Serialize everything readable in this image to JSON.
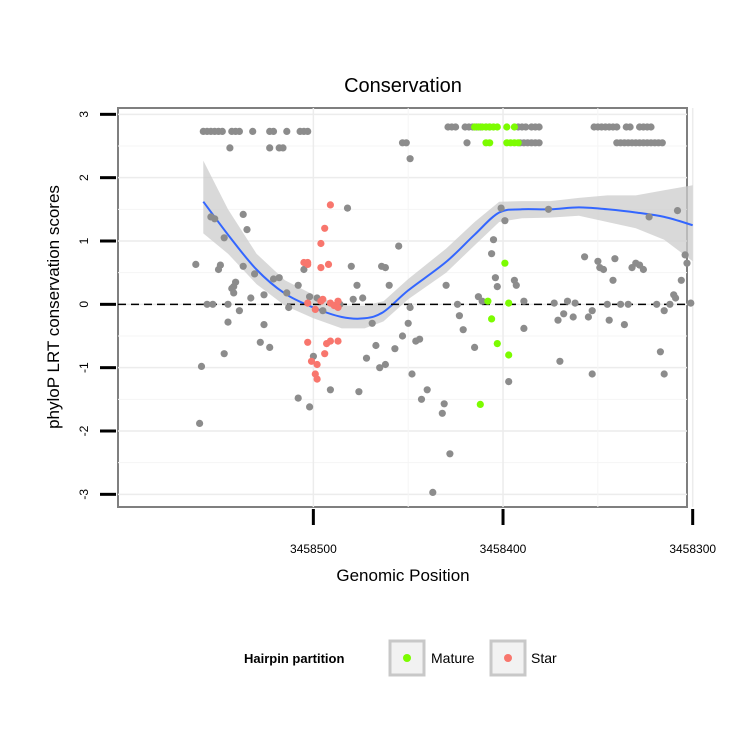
{
  "chart_data": {
    "type": "scatter",
    "title": "Conservation",
    "xlabel": "Genomic Position",
    "ylabel": "phyloP LRT conservation scores",
    "x_reversed": true,
    "xlim": [
      3458303,
      3458603
    ],
    "ylim": [
      -3.2,
      3.1
    ],
    "x_ticks": [
      3458500,
      3458400,
      3458300
    ],
    "y_ticks": [
      -3,
      -2,
      -1,
      0,
      1,
      2,
      3
    ],
    "reference_line": {
      "y": 0,
      "style": "dashed",
      "color": "#000000"
    },
    "grid": true,
    "legend": {
      "title": "Hairpin partition",
      "position": "bottom",
      "entries": [
        {
          "label": "Mature",
          "color": "#7CFC00"
        },
        {
          "label": "Star",
          "color": "#F8766D"
        }
      ]
    },
    "colors": {
      "other": "#8C8C8C",
      "Mature": "#7CFC00",
      "Star": "#F8766D",
      "smooth_line": "#3366FF",
      "smooth_band": "#CCCCCC"
    },
    "series": [
      {
        "group": "other",
        "points": [
          [
            3458558,
            2.73
          ],
          [
            3458556,
            2.73
          ],
          [
            3458554,
            2.73
          ],
          [
            3458552,
            2.73
          ],
          [
            3458550,
            2.73
          ],
          [
            3458548,
            2.73
          ],
          [
            3458543,
            2.73
          ],
          [
            3458541,
            2.73
          ],
          [
            3458539,
            2.73
          ],
          [
            3458532,
            2.73
          ],
          [
            3458523,
            2.73
          ],
          [
            3458521,
            2.73
          ],
          [
            3458514,
            2.73
          ],
          [
            3458507,
            2.73
          ],
          [
            3458505,
            2.73
          ],
          [
            3458503,
            2.73
          ],
          [
            3458544,
            2.47
          ],
          [
            3458523,
            2.47
          ],
          [
            3458518,
            2.47
          ],
          [
            3458516,
            2.47
          ],
          [
            3458453,
            2.55
          ],
          [
            3458451,
            2.55
          ],
          [
            3458419,
            2.55
          ],
          [
            3458391,
            2.55
          ],
          [
            3458389,
            2.55
          ],
          [
            3458387,
            2.55
          ],
          [
            3458385,
            2.55
          ],
          [
            3458383,
            2.55
          ],
          [
            3458381,
            2.55
          ],
          [
            3458449,
            2.3
          ],
          [
            3458429,
            2.8
          ],
          [
            3458427,
            2.8
          ],
          [
            3458425,
            2.8
          ],
          [
            3458420,
            2.8
          ],
          [
            3458418,
            2.8
          ],
          [
            3458416,
            2.8
          ],
          [
            3458414,
            2.8
          ],
          [
            3458412,
            2.8
          ],
          [
            3458409,
            2.8
          ],
          [
            3458407,
            2.8
          ],
          [
            3458392,
            2.8
          ],
          [
            3458390,
            2.8
          ],
          [
            3458388,
            2.8
          ],
          [
            3458385,
            2.8
          ],
          [
            3458383,
            2.8
          ],
          [
            3458381,
            2.8
          ],
          [
            3458352,
            2.8
          ],
          [
            3458350,
            2.8
          ],
          [
            3458348,
            2.8
          ],
          [
            3458346,
            2.8
          ],
          [
            3458344,
            2.8
          ],
          [
            3458342,
            2.8
          ],
          [
            3458340,
            2.8
          ],
          [
            3458335,
            2.8
          ],
          [
            3458333,
            2.8
          ],
          [
            3458328,
            2.8
          ],
          [
            3458326,
            2.8
          ],
          [
            3458324,
            2.8
          ],
          [
            3458322,
            2.8
          ],
          [
            3458340,
            2.55
          ],
          [
            3458338,
            2.55
          ],
          [
            3458336,
            2.55
          ],
          [
            3458334,
            2.55
          ],
          [
            3458332,
            2.55
          ],
          [
            3458330,
            2.55
          ],
          [
            3458328,
            2.55
          ],
          [
            3458326,
            2.55
          ],
          [
            3458324,
            2.55
          ],
          [
            3458322,
            2.55
          ],
          [
            3458320,
            2.55
          ],
          [
            3458318,
            2.55
          ],
          [
            3458316,
            2.55
          ],
          [
            3458562,
            0.63
          ],
          [
            3458559,
            -0.98
          ],
          [
            3458560,
            -1.88
          ],
          [
            3458556,
            0.0
          ],
          [
            3458553,
            0.0
          ],
          [
            3458554,
            1.38
          ],
          [
            3458552,
            1.35
          ],
          [
            3458550,
            0.55
          ],
          [
            3458549,
            0.62
          ],
          [
            3458547,
            -0.78
          ],
          [
            3458547,
            1.05
          ],
          [
            3458545,
            0.0
          ],
          [
            3458545,
            -0.28
          ],
          [
            3458543,
            0.25
          ],
          [
            3458542,
            0.28
          ],
          [
            3458542,
            0.18
          ],
          [
            3458541,
            0.35
          ],
          [
            3458539,
            -0.1
          ],
          [
            3458537,
            0.6
          ],
          [
            3458537,
            1.42
          ],
          [
            3458535,
            1.18
          ],
          [
            3458533,
            0.1
          ],
          [
            3458531,
            0.48
          ],
          [
            3458528,
            -0.6
          ],
          [
            3458526,
            0.15
          ],
          [
            3458526,
            -0.32
          ],
          [
            3458523,
            -0.68
          ],
          [
            3458521,
            0.4
          ],
          [
            3458518,
            0.42
          ],
          [
            3458514,
            0.18
          ],
          [
            3458513,
            -0.05
          ],
          [
            3458508,
            0.3
          ],
          [
            3458508,
            -1.48
          ],
          [
            3458505,
            0.55
          ],
          [
            3458502,
            -1.62
          ],
          [
            3458502,
            0.12
          ],
          [
            3458500,
            -0.82
          ],
          [
            3458498,
            0.1
          ],
          [
            3458495,
            -0.1
          ],
          [
            3458491,
            -1.35
          ],
          [
            3458479,
            0.08
          ],
          [
            3458477,
            0.3
          ],
          [
            3458476,
            -1.38
          ],
          [
            3458474,
            0.1
          ],
          [
            3458472,
            -0.85
          ],
          [
            3458469,
            -0.3
          ],
          [
            3458467,
            -0.65
          ],
          [
            3458465,
            -1.0
          ],
          [
            3458464,
            0.6
          ],
          [
            3458462,
            0.58
          ],
          [
            3458462,
            -0.95
          ],
          [
            3458457,
            -0.7
          ],
          [
            3458455,
            0.92
          ],
          [
            3458453,
            -0.5
          ],
          [
            3458450,
            -0.3
          ],
          [
            3458449,
            -0.05
          ],
          [
            3458448,
            -1.1
          ],
          [
            3458446,
            -0.58
          ],
          [
            3458444,
            -0.55
          ],
          [
            3458443,
            -1.5
          ],
          [
            3458440,
            -1.35
          ],
          [
            3458437,
            -2.97
          ],
          [
            3458432,
            -1.72
          ],
          [
            3458431,
            -1.57
          ],
          [
            3458428,
            -2.36
          ],
          [
            3458424,
            0.0
          ],
          [
            3458423,
            -0.18
          ],
          [
            3458421,
            -0.4
          ],
          [
            3458415,
            -0.68
          ],
          [
            3458413,
            0.12
          ],
          [
            3458411,
            0.05
          ],
          [
            3458406,
            0.8
          ],
          [
            3458405,
            1.02
          ],
          [
            3458404,
            0.42
          ],
          [
            3458403,
            0.28
          ],
          [
            3458401,
            1.52
          ],
          [
            3458399,
            1.32
          ],
          [
            3458397,
            -1.22
          ],
          [
            3458394,
            0.38
          ],
          [
            3458393,
            0.3
          ],
          [
            3458389,
            0.05
          ],
          [
            3458389,
            -0.38
          ],
          [
            3458376,
            1.5
          ],
          [
            3458373,
            0.02
          ],
          [
            3458371,
            -0.25
          ],
          [
            3458370,
            -0.9
          ],
          [
            3458368,
            -0.15
          ],
          [
            3458366,
            0.05
          ],
          [
            3458363,
            -0.2
          ],
          [
            3458362,
            0.02
          ],
          [
            3458357,
            0.75
          ],
          [
            3458355,
            -0.2
          ],
          [
            3458353,
            -1.1
          ],
          [
            3458353,
            -0.1
          ],
          [
            3458350,
            0.68
          ],
          [
            3458349,
            0.58
          ],
          [
            3458347,
            0.55
          ],
          [
            3458345,
            0.0
          ],
          [
            3458344,
            -0.25
          ],
          [
            3458342,
            0.38
          ],
          [
            3458341,
            0.72
          ],
          [
            3458338,
            0.0
          ],
          [
            3458336,
            -0.32
          ],
          [
            3458334,
            0.0
          ],
          [
            3458332,
            0.58
          ],
          [
            3458330,
            0.65
          ],
          [
            3458328,
            0.62
          ],
          [
            3458326,
            0.55
          ],
          [
            3458323,
            1.38
          ],
          [
            3458319,
            0.0
          ],
          [
            3458317,
            -0.75
          ],
          [
            3458315,
            -1.1
          ],
          [
            3458315,
            -0.1
          ],
          [
            3458312,
            0.0
          ],
          [
            3458310,
            0.15
          ],
          [
            3458309,
            0.1
          ],
          [
            3458308,
            1.48
          ],
          [
            3458306,
            0.38
          ],
          [
            3458304,
            0.78
          ],
          [
            3458303,
            0.65
          ],
          [
            3458301,
            0.02
          ],
          [
            3458482,
            1.52
          ],
          [
            3458486,
            0.0
          ],
          [
            3458460,
            0.3
          ],
          [
            3458430,
            0.3
          ],
          [
            3458480,
            0.6
          ]
        ]
      },
      {
        "group": "Mature",
        "points": [
          [
            3458415,
            2.8
          ],
          [
            3458413,
            2.8
          ],
          [
            3458411,
            2.8
          ],
          [
            3458409,
            2.8
          ],
          [
            3458407,
            2.8
          ],
          [
            3458405,
            2.8
          ],
          [
            3458403,
            2.8
          ],
          [
            3458398,
            2.8
          ],
          [
            3458394,
            2.8
          ],
          [
            3458409,
            2.55
          ],
          [
            3458407,
            2.55
          ],
          [
            3458398,
            2.55
          ],
          [
            3458396,
            2.55
          ],
          [
            3458394,
            2.55
          ],
          [
            3458392,
            2.55
          ],
          [
            3458408,
            0.05
          ],
          [
            3458399,
            0.65
          ],
          [
            3458397,
            0.02
          ],
          [
            3458406,
            -0.23
          ],
          [
            3458403,
            -0.62
          ],
          [
            3458397,
            -0.8
          ],
          [
            3458412,
            -1.58
          ]
        ]
      },
      {
        "group": "Star",
        "points": [
          [
            3458491,
            1.57
          ],
          [
            3458494,
            1.2
          ],
          [
            3458496,
            0.96
          ],
          [
            3458496,
            0.58
          ],
          [
            3458492,
            0.63
          ],
          [
            3458496,
            0.05
          ],
          [
            3458503,
            0.63
          ],
          [
            3458503,
            0.66
          ],
          [
            3458505,
            0.66
          ],
          [
            3458503,
            0.02
          ],
          [
            3458495,
            0.08
          ],
          [
            3458491,
            0.02
          ],
          [
            3458489,
            -0.02
          ],
          [
            3458487,
            -0.05
          ],
          [
            3458499,
            -0.08
          ],
          [
            3458487,
            0.05
          ],
          [
            3458493,
            -0.62
          ],
          [
            3458491,
            -0.58
          ],
          [
            3458487,
            -0.58
          ],
          [
            3458503,
            -0.6
          ],
          [
            3458501,
            -0.9
          ],
          [
            3458498,
            -0.95
          ],
          [
            3458494,
            -0.78
          ],
          [
            3458498,
            -1.18
          ],
          [
            3458499,
            -1.1
          ]
        ]
      }
    ],
    "smooth": {
      "line": [
        [
          3458558,
          1.62
        ],
        [
          3458545,
          1.1
        ],
        [
          3458530,
          0.55
        ],
        [
          3458515,
          0.17
        ],
        [
          3458500,
          -0.05
        ],
        [
          3458485,
          -0.2
        ],
        [
          3458473,
          -0.22
        ],
        [
          3458463,
          -0.12
        ],
        [
          3458450,
          0.22
        ],
        [
          3458430,
          0.67
        ],
        [
          3458415,
          1.1
        ],
        [
          3458402,
          1.45
        ],
        [
          3458390,
          1.5
        ],
        [
          3458375,
          1.5
        ],
        [
          3458360,
          1.53
        ],
        [
          3458345,
          1.5
        ],
        [
          3458330,
          1.45
        ],
        [
          3458315,
          1.38
        ],
        [
          3458300,
          1.25
        ]
      ],
      "band": [
        [
          3458558,
          1.12,
          2.27
        ],
        [
          3458545,
          0.8,
          1.5
        ],
        [
          3458530,
          0.32,
          0.8
        ],
        [
          3458515,
          -0.02,
          0.38
        ],
        [
          3458500,
          -0.22,
          0.15
        ],
        [
          3458485,
          -0.38,
          -0.02
        ],
        [
          3458473,
          -0.38,
          -0.02
        ],
        [
          3458463,
          -0.27,
          0.05
        ],
        [
          3458450,
          0.08,
          0.4
        ],
        [
          3458430,
          0.5,
          0.88
        ],
        [
          3458415,
          0.93,
          1.3
        ],
        [
          3458402,
          1.3,
          1.62
        ],
        [
          3458390,
          1.36,
          1.63
        ],
        [
          3458375,
          1.37,
          1.63
        ],
        [
          3458360,
          1.4,
          1.68
        ],
        [
          3458345,
          1.3,
          1.72
        ],
        [
          3458330,
          1.2,
          1.72
        ],
        [
          3458315,
          1.02,
          1.8
        ],
        [
          3458300,
          0.68,
          1.88
        ]
      ]
    }
  }
}
